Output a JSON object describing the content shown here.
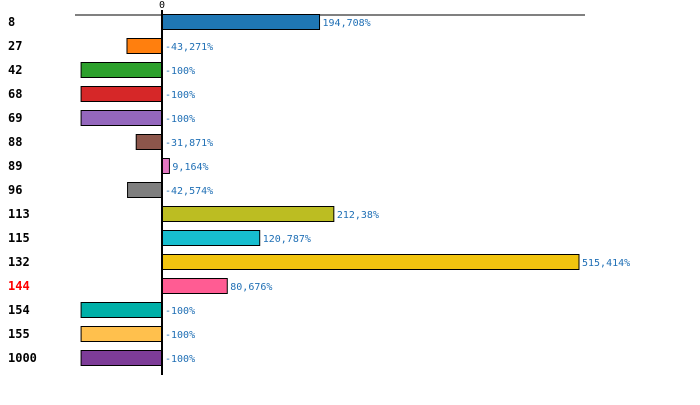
{
  "chart_data": {
    "type": "bar",
    "orientation": "horizontal",
    "title": "",
    "xlabel": "",
    "ylabel": "",
    "axis_zero_label": "0",
    "highlighted_category": "144",
    "highlight_color": "#ff0000",
    "xlim": [
      -100,
      515.414
    ],
    "categories": [
      "8",
      "27",
      "42",
      "68",
      "69",
      "88",
      "89",
      "96",
      "113",
      "115",
      "132",
      "144",
      "154",
      "155",
      "1000"
    ],
    "values": [
      194.708,
      -43.271,
      -100,
      -100,
      -100,
      -31.871,
      9.164,
      -42.574,
      212.38,
      120.787,
      515.414,
      80.676,
      -100,
      -100,
      -100
    ],
    "value_labels": [
      "194,708%",
      "-43,271%",
      "-100%",
      "-100%",
      "-100%",
      "-31,871%",
      "9,164%",
      "-42,574%",
      "212,38%",
      "120,787%",
      "515,414%",
      "80,676%",
      "-100%",
      "-100%",
      "-100%"
    ],
    "colors": [
      "#1f77b4",
      "#ff7f0e",
      "#2ca02c",
      "#d62728",
      "#9467bd",
      "#8c564b",
      "#e377c2",
      "#7f7f7f",
      "#bcbd22",
      "#17becf",
      "#f1c40f",
      "#ff5c93",
      "#00b0a8",
      "#ffc04d",
      "#7d3c98"
    ]
  }
}
